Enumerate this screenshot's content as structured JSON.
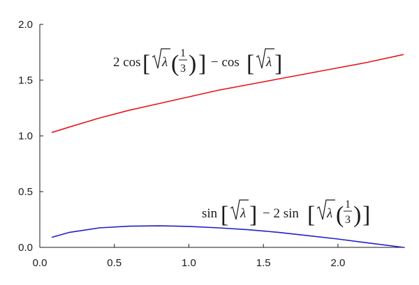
{
  "chart_data": {
    "type": "line",
    "title": "",
    "xlabel": "",
    "ylabel": "",
    "xlim": [
      0.0,
      2.45
    ],
    "ylim": [
      0.0,
      2.0
    ],
    "xticks": [
      "0.0",
      "0.5",
      "1.0",
      "1.5",
      "2.0"
    ],
    "yticks": [
      "0.0",
      "0.5",
      "1.0",
      "1.5",
      "2.0"
    ],
    "grid": false,
    "legend": "none",
    "series": [
      {
        "name": "2 cos[√λ(1/3)] − cos[√λ]",
        "color": "#e8141a",
        "x": [
          0.08,
          0.2,
          0.4,
          0.6,
          0.8,
          1.0,
          1.2,
          1.4,
          1.6,
          1.8,
          2.0,
          2.2,
          2.44
        ],
        "y": [
          1.03,
          1.08,
          1.16,
          1.23,
          1.29,
          1.35,
          1.41,
          1.46,
          1.51,
          1.56,
          1.61,
          1.66,
          1.73
        ]
      },
      {
        "name": "sin[√λ] − 2 sin[√λ(1/3)]",
        "color": "#1f1fcc",
        "x": [
          0.08,
          0.2,
          0.4,
          0.6,
          0.8,
          1.0,
          1.2,
          1.4,
          1.6,
          1.8,
          2.0,
          2.2,
          2.44
        ],
        "y": [
          0.09,
          0.135,
          0.175,
          0.19,
          0.193,
          0.188,
          0.175,
          0.158,
          0.135,
          0.105,
          0.075,
          0.04,
          0.0
        ]
      }
    ],
    "annotations": {
      "red": {
        "coef": "2 cos",
        "sqrt": "λ",
        "num": "1",
        "den": "3",
        "minus": "− cos"
      },
      "blue": {
        "first": "sin",
        "sqrt": "λ",
        "minus": "− 2 sin",
        "num": "1",
        "den": "3"
      }
    }
  }
}
